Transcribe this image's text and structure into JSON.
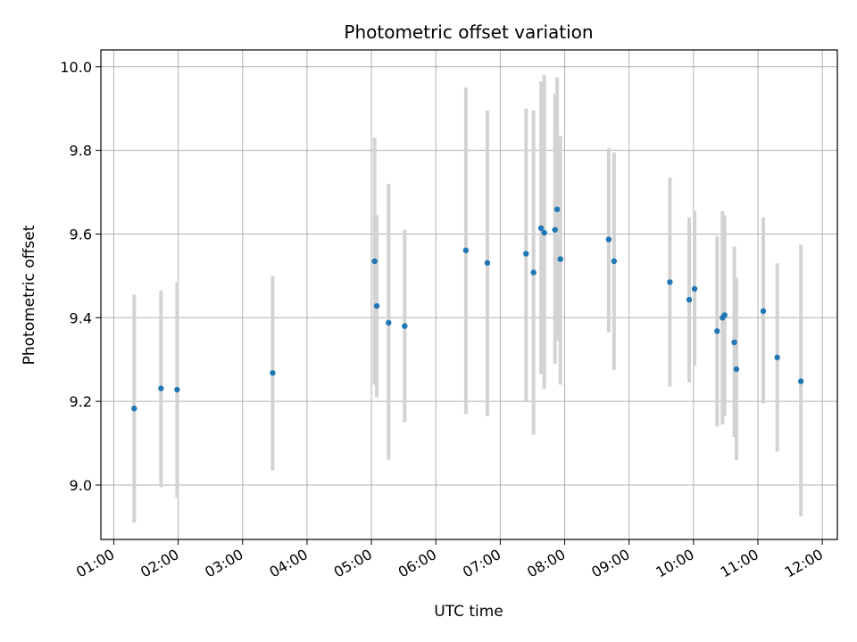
{
  "chart_data": {
    "type": "scatter",
    "title": "Photometric offset variation",
    "xlabel": "UTC time",
    "ylabel": "Photometric offset",
    "x_ticks": [
      "01:00",
      "02:00",
      "03:00",
      "04:00",
      "05:00",
      "06:00",
      "07:00",
      "08:00",
      "09:00",
      "10:00",
      "11:00",
      "12:00"
    ],
    "y_ticks": [
      "9.0",
      "9.2",
      "9.4",
      "9.6",
      "9.8",
      "10.0"
    ],
    "xlim": [
      "00:48",
      "12:14"
    ],
    "ylim": [
      8.87,
      10.04
    ],
    "grid": true,
    "marker_color": "#1f77b4",
    "errorbar_color": "#d3d3d3",
    "points": [
      {
        "t": "01:19",
        "y": 9.183,
        "lo": 8.91,
        "hi": 9.455
      },
      {
        "t": "01:44",
        "y": 9.231,
        "lo": 8.995,
        "hi": 9.465
      },
      {
        "t": "01:59",
        "y": 9.228,
        "lo": 8.97,
        "hi": 9.485
      },
      {
        "t": "03:28",
        "y": 9.268,
        "lo": 9.035,
        "hi": 9.5
      },
      {
        "t": "05:03",
        "y": 9.535,
        "lo": 9.24,
        "hi": 9.83
      },
      {
        "t": "05:05",
        "y": 9.428,
        "lo": 9.21,
        "hi": 9.645
      },
      {
        "t": "05:16",
        "y": 9.388,
        "lo": 9.06,
        "hi": 9.72
      },
      {
        "t": "05:31",
        "y": 9.38,
        "lo": 9.15,
        "hi": 9.61
      },
      {
        "t": "06:28",
        "y": 9.561,
        "lo": 9.17,
        "hi": 9.95
      },
      {
        "t": "06:48",
        "y": 9.531,
        "lo": 9.165,
        "hi": 9.895
      },
      {
        "t": "07:24",
        "y": 9.553,
        "lo": 9.2,
        "hi": 9.9
      },
      {
        "t": "07:31",
        "y": 9.508,
        "lo": 9.12,
        "hi": 9.895
      },
      {
        "t": "07:38",
        "y": 9.614,
        "lo": 9.265,
        "hi": 9.965
      },
      {
        "t": "07:41",
        "y": 9.603,
        "lo": 9.23,
        "hi": 9.98
      },
      {
        "t": "07:51",
        "y": 9.61,
        "lo": 9.29,
        "hi": 9.935
      },
      {
        "t": "07:53",
        "y": 9.659,
        "lo": 9.345,
        "hi": 9.975
      },
      {
        "t": "07:56",
        "y": 9.54,
        "lo": 9.24,
        "hi": 9.835
      },
      {
        "t": "08:41",
        "y": 9.587,
        "lo": 9.365,
        "hi": 9.805
      },
      {
        "t": "08:46",
        "y": 9.535,
        "lo": 9.275,
        "hi": 9.795
      },
      {
        "t": "09:38",
        "y": 9.485,
        "lo": 9.235,
        "hi": 9.735
      },
      {
        "t": "09:56",
        "y": 9.443,
        "lo": 9.245,
        "hi": 9.64
      },
      {
        "t": "10:01",
        "y": 9.469,
        "lo": 9.285,
        "hi": 9.655
      },
      {
        "t": "10:22",
        "y": 9.368,
        "lo": 9.14,
        "hi": 9.595
      },
      {
        "t": "10:27",
        "y": 9.4,
        "lo": 9.145,
        "hi": 9.655
      },
      {
        "t": "10:29",
        "y": 9.406,
        "lo": 9.165,
        "hi": 9.645
      },
      {
        "t": "10:38",
        "y": 9.341,
        "lo": 9.115,
        "hi": 9.57
      },
      {
        "t": "10:40",
        "y": 9.277,
        "lo": 9.06,
        "hi": 9.495
      },
      {
        "t": "11:05",
        "y": 9.416,
        "lo": 9.195,
        "hi": 9.64
      },
      {
        "t": "11:18",
        "y": 9.305,
        "lo": 9.08,
        "hi": 9.53
      },
      {
        "t": "11:40",
        "y": 9.248,
        "lo": 8.925,
        "hi": 9.575
      }
    ]
  }
}
